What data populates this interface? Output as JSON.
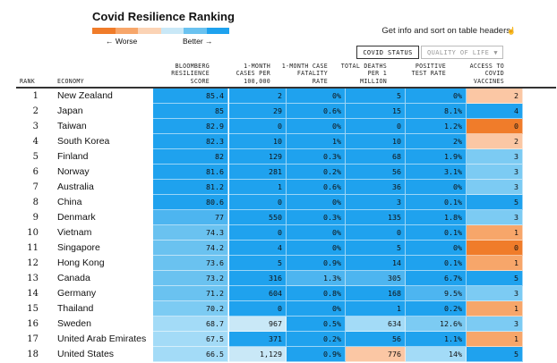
{
  "title": "Covid Resilience Ranking",
  "legend": {
    "colors": [
      "#f07c2a",
      "#f7a66a",
      "#fbd3b5",
      "#c9e8f7",
      "#6ac2f0",
      "#1fa2ee"
    ],
    "worse_label": "← Worse",
    "better_label": "Better →"
  },
  "hint": "Get info and sort on table headers",
  "hint_icon": "pointer-hand-icon",
  "tabs": {
    "active": "COVID STATUS",
    "inactive": "QUALITY OF LIFE",
    "caret": "▼"
  },
  "headers": {
    "rank": "RANK",
    "economy": "ECONOMY",
    "score": "BLOOMBERG\nRESILIENCE\nSCORE",
    "cases": "1-MONTH\nCASES PER\n100,000",
    "fatality": "1-MONTH CASE\nFATALITY\nRATE",
    "deaths": "TOTAL DEATHS\nPER 1\nMILLION",
    "positive": "POSITIVE\nTEST RATE",
    "vaccines": "ACCESS TO\nCOVID\nVACCINES"
  },
  "rows": [
    {
      "rank": "1",
      "economy": "New Zealand",
      "score": "85.4",
      "cases": "2",
      "fatality": "0%",
      "deaths": "5",
      "positive": "0%",
      "vaccines": "2",
      "colors": [
        "#1fa2ee",
        "#1fa2ee",
        "#1fa2ee",
        "#1fa2ee",
        "#1fa2ee",
        "#fbc7a4"
      ]
    },
    {
      "rank": "2",
      "economy": "Japan",
      "score": "85",
      "cases": "29",
      "fatality": "0.6%",
      "deaths": "15",
      "positive": "8.1%",
      "vaccines": "4",
      "colors": [
        "#1fa2ee",
        "#1fa2ee",
        "#1fa2ee",
        "#1fa2ee",
        "#1fa2ee",
        "#1fa2ee"
      ]
    },
    {
      "rank": "3",
      "economy": "Taiwan",
      "score": "82.9",
      "cases": "0",
      "fatality": "0%",
      "deaths": "0",
      "positive": "1.2%",
      "vaccines": "0",
      "colors": [
        "#1fa2ee",
        "#1fa2ee",
        "#1fa2ee",
        "#1fa2ee",
        "#1fa2ee",
        "#f07c2a"
      ]
    },
    {
      "rank": "4",
      "economy": "South Korea",
      "score": "82.3",
      "cases": "10",
      "fatality": "1%",
      "deaths": "10",
      "positive": "2%",
      "vaccines": "2",
      "colors": [
        "#1fa2ee",
        "#1fa2ee",
        "#1fa2ee",
        "#1fa2ee",
        "#1fa2ee",
        "#fbc7a4"
      ]
    },
    {
      "rank": "5",
      "economy": "Finland",
      "score": "82",
      "cases": "129",
      "fatality": "0.3%",
      "deaths": "68",
      "positive": "1.9%",
      "vaccines": "3",
      "colors": [
        "#1fa2ee",
        "#1fa2ee",
        "#1fa2ee",
        "#1fa2ee",
        "#1fa2ee",
        "#7ccbf3"
      ]
    },
    {
      "rank": "6",
      "economy": "Norway",
      "score": "81.6",
      "cases": "281",
      "fatality": "0.2%",
      "deaths": "56",
      "positive": "3.1%",
      "vaccines": "3",
      "colors": [
        "#1fa2ee",
        "#1fa2ee",
        "#1fa2ee",
        "#1fa2ee",
        "#1fa2ee",
        "#7ccbf3"
      ]
    },
    {
      "rank": "7",
      "economy": "Australia",
      "score": "81.2",
      "cases": "1",
      "fatality": "0.6%",
      "deaths": "36",
      "positive": "0%",
      "vaccines": "3",
      "colors": [
        "#1fa2ee",
        "#1fa2ee",
        "#1fa2ee",
        "#1fa2ee",
        "#1fa2ee",
        "#7ccbf3"
      ]
    },
    {
      "rank": "8",
      "economy": "China",
      "score": "80.6",
      "cases": "0",
      "fatality": "0%",
      "deaths": "3",
      "positive": "0.1%",
      "vaccines": "5",
      "colors": [
        "#1fa2ee",
        "#1fa2ee",
        "#1fa2ee",
        "#1fa2ee",
        "#1fa2ee",
        "#1fa2ee"
      ]
    },
    {
      "rank": "9",
      "economy": "Denmark",
      "score": "77",
      "cases": "550",
      "fatality": "0.3%",
      "deaths": "135",
      "positive": "1.8%",
      "vaccines": "3",
      "colors": [
        "#4db5f0",
        "#1fa2ee",
        "#1fa2ee",
        "#1fa2ee",
        "#1fa2ee",
        "#7ccbf3"
      ]
    },
    {
      "rank": "10",
      "economy": "Vietnam",
      "score": "74.3",
      "cases": "0",
      "fatality": "0%",
      "deaths": "0",
      "positive": "0.1%",
      "vaccines": "1",
      "colors": [
        "#6ac2f0",
        "#1fa2ee",
        "#1fa2ee",
        "#1fa2ee",
        "#1fa2ee",
        "#f7a66a"
      ]
    },
    {
      "rank": "11",
      "economy": "Singapore",
      "score": "74.2",
      "cases": "4",
      "fatality": "0%",
      "deaths": "5",
      "positive": "0%",
      "vaccines": "0",
      "colors": [
        "#6ac2f0",
        "#1fa2ee",
        "#1fa2ee",
        "#1fa2ee",
        "#1fa2ee",
        "#f07c2a"
      ]
    },
    {
      "rank": "12",
      "economy": "Hong Kong",
      "score": "73.6",
      "cases": "5",
      "fatality": "0.9%",
      "deaths": "14",
      "positive": "0.1%",
      "vaccines": "1",
      "colors": [
        "#6ac2f0",
        "#1fa2ee",
        "#1fa2ee",
        "#1fa2ee",
        "#1fa2ee",
        "#f7a66a"
      ]
    },
    {
      "rank": "13",
      "economy": "Canada",
      "score": "73.2",
      "cases": "316",
      "fatality": "1.3%",
      "deaths": "305",
      "positive": "6.7%",
      "vaccines": "5",
      "colors": [
        "#6ac2f0",
        "#1fa2ee",
        "#4db5f0",
        "#4db5f0",
        "#1fa2ee",
        "#1fa2ee"
      ]
    },
    {
      "rank": "14",
      "economy": "Germany",
      "score": "71.2",
      "cases": "604",
      "fatality": "0.8%",
      "deaths": "168",
      "positive": "9.5%",
      "vaccines": "3",
      "colors": [
        "#6ac2f0",
        "#1fa2ee",
        "#1fa2ee",
        "#1fa2ee",
        "#4db5f0",
        "#7ccbf3"
      ]
    },
    {
      "rank": "15",
      "economy": "Thailand",
      "score": "70.2",
      "cases": "0",
      "fatality": "0%",
      "deaths": "1",
      "positive": "0.2%",
      "vaccines": "1",
      "colors": [
        "#7ccbf3",
        "#1fa2ee",
        "#1fa2ee",
        "#1fa2ee",
        "#1fa2ee",
        "#f7a66a"
      ]
    },
    {
      "rank": "16",
      "economy": "Sweden",
      "score": "68.7",
      "cases": "967",
      "fatality": "0.5%",
      "deaths": "634",
      "positive": "12.6%",
      "vaccines": "3",
      "colors": [
        "#a3dbf7",
        "#c9e8f7",
        "#1fa2ee",
        "#a3dbf7",
        "#7ccbf3",
        "#7ccbf3"
      ]
    },
    {
      "rank": "17",
      "economy": "United Arab Emirates",
      "score": "67.5",
      "cases": "371",
      "fatality": "0.2%",
      "deaths": "56",
      "positive": "1.1%",
      "vaccines": "1",
      "colors": [
        "#a3dbf7",
        "#1fa2ee",
        "#1fa2ee",
        "#1fa2ee",
        "#1fa2ee",
        "#f7a66a"
      ]
    },
    {
      "rank": "18",
      "economy": "United States",
      "score": "66.5",
      "cases": "1,129",
      "fatality": "0.9%",
      "deaths": "776",
      "positive": "14%",
      "vaccines": "5",
      "colors": [
        "#a3dbf7",
        "#c9e8f7",
        "#1fa2ee",
        "#fbc7a4",
        "#a3dbf7",
        "#1fa2ee"
      ]
    }
  ]
}
